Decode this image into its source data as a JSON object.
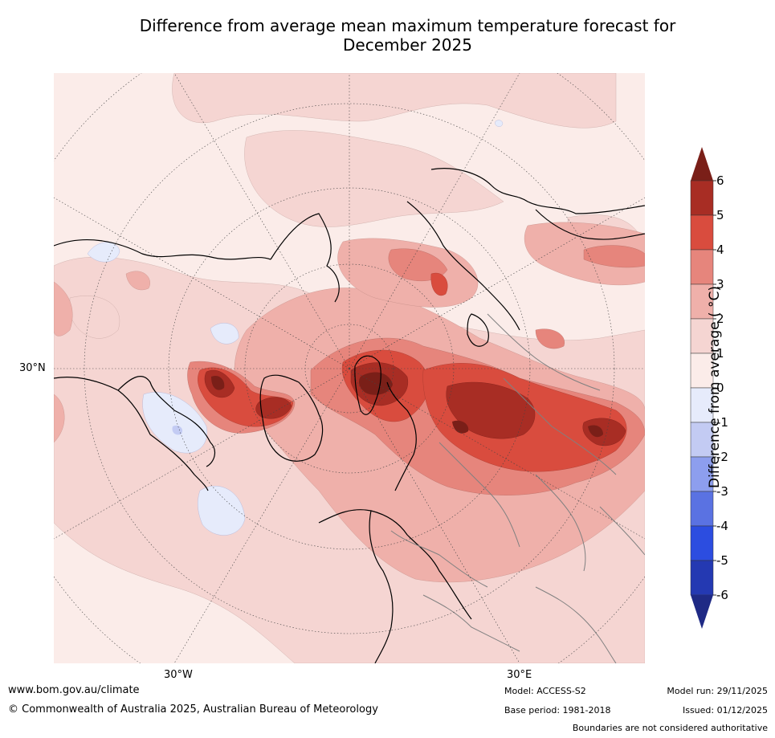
{
  "title_line1": "Difference from average mean maximum temperature forecast for",
  "title_line2": "December 2025",
  "axis_labels": {
    "lat_30n": "30°N",
    "lon_30w": "30°W",
    "lon_30e": "30°E"
  },
  "colorbar": {
    "title": "Difference from average ( °C)",
    "ticks": [
      "6",
      "5",
      "4",
      "3",
      "2",
      "1",
      "0",
      "-1",
      "-2",
      "-3",
      "-4",
      "-5",
      "-6"
    ],
    "colors": {
      "over": "#7a1f18",
      "5_6": "#a82d24",
      "4_5": "#d94c3e",
      "3_4": "#e6857c",
      "2_3": "#efb0aa",
      "1_2": "#f5d5d2",
      "0_1": "#fbece9",
      "m1_0": "#e6ebfb",
      "m2_m1": "#c3cbf3",
      "m3_m2": "#8d9eee",
      "m4_m3": "#5a72e2",
      "m5_m4": "#2c4de0",
      "m6_m5": "#2439b2",
      "under": "#1f2a85"
    }
  },
  "footer": {
    "website": "www.bom.gov.au/climate",
    "copyright": "© Commonwealth of Australia 2025, Australian Bureau of Meteorology",
    "model": "Model: ACCESS-S2",
    "base_period": "Base period: 1981-2018",
    "model_run": "Model run: 29/11/2025",
    "issued": "Issued: 01/12/2025",
    "disclaimer": "Boundaries are not considered authoritative"
  }
}
